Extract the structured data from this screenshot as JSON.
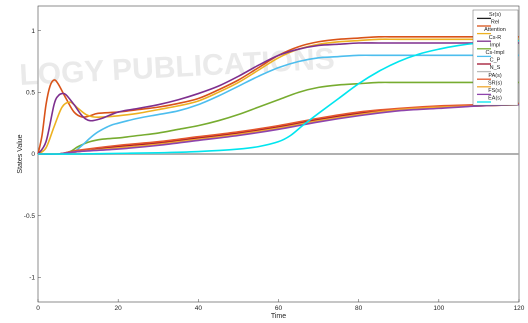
{
  "chart_data": {
    "type": "line",
    "title": "",
    "xlabel": "Time",
    "ylabel": "States Value",
    "xlim": [
      0,
      120
    ],
    "ylim": [
      -1.2,
      1.2
    ],
    "xticks": [
      "0",
      "20",
      "40",
      "60",
      "80",
      "100",
      "120"
    ],
    "yticks": [
      "-1",
      "-0.5",
      "0",
      "0.5",
      "1"
    ],
    "grid": false,
    "legend_position": "top-right",
    "series": [
      {
        "name": "Sr(s)",
        "color": "#1f1f1f",
        "x": [
          0,
          120
        ],
        "y": [
          0,
          0
        ]
      },
      {
        "name": "Rel",
        "color": "#d95319",
        "x": [
          0,
          1,
          2,
          3,
          4,
          5,
          7,
          9,
          11,
          13,
          15,
          20,
          25,
          30,
          35,
          40,
          45,
          50,
          55,
          60,
          65,
          70,
          75,
          80,
          85,
          90,
          100,
          110,
          120
        ],
        "y": [
          0,
          0.15,
          0.4,
          0.55,
          0.6,
          0.57,
          0.45,
          0.34,
          0.3,
          0.31,
          0.33,
          0.34,
          0.36,
          0.38,
          0.41,
          0.45,
          0.52,
          0.6,
          0.7,
          0.8,
          0.87,
          0.91,
          0.93,
          0.94,
          0.95,
          0.95,
          0.95,
          0.95,
          0.95
        ]
      },
      {
        "name": "Attention",
        "color": "#edb120",
        "x": [
          0,
          2,
          4,
          6,
          8,
          10,
          12,
          14,
          16,
          20,
          25,
          30,
          35,
          40,
          45,
          50,
          55,
          60,
          65,
          70,
          75,
          80,
          85,
          90,
          100,
          110,
          120
        ],
        "y": [
          0,
          0.05,
          0.22,
          0.38,
          0.42,
          0.37,
          0.32,
          0.3,
          0.3,
          0.31,
          0.33,
          0.36,
          0.39,
          0.43,
          0.5,
          0.58,
          0.68,
          0.78,
          0.85,
          0.89,
          0.91,
          0.92,
          0.93,
          0.93,
          0.93,
          0.93,
          0.93
        ]
      },
      {
        "name": "Cs-R",
        "color": "#7e2f8e",
        "x": [
          0,
          2,
          4,
          5,
          6,
          7,
          9,
          11,
          13,
          16,
          20,
          25,
          30,
          35,
          40,
          45,
          50,
          55,
          60,
          65,
          70,
          75,
          80,
          85,
          90,
          100,
          110,
          120
        ],
        "y": [
          0,
          0.1,
          0.4,
          0.47,
          0.49,
          0.48,
          0.4,
          0.31,
          0.27,
          0.29,
          0.34,
          0.37,
          0.4,
          0.44,
          0.49,
          0.55,
          0.63,
          0.72,
          0.8,
          0.85,
          0.88,
          0.89,
          0.9,
          0.9,
          0.9,
          0.9,
          0.9,
          0.9
        ]
      },
      {
        "name": "Impl",
        "color": "#77ac30",
        "x": [
          0,
          5,
          8,
          10,
          13,
          16,
          20,
          25,
          30,
          35,
          40,
          45,
          50,
          55,
          60,
          65,
          70,
          75,
          80,
          85,
          90,
          100,
          110,
          120
        ],
        "y": [
          0,
          0,
          0.02,
          0.06,
          0.1,
          0.12,
          0.13,
          0.15,
          0.17,
          0.2,
          0.23,
          0.27,
          0.32,
          0.38,
          0.44,
          0.5,
          0.54,
          0.56,
          0.57,
          0.58,
          0.58,
          0.58,
          0.58,
          0.58
        ]
      },
      {
        "name": "Cs-Impl",
        "color": "#4dbeee",
        "x": [
          0,
          6,
          9,
          11,
          13,
          15,
          18,
          20,
          25,
          30,
          35,
          40,
          45,
          50,
          55,
          60,
          65,
          70,
          75,
          80,
          85,
          90,
          100,
          110,
          120
        ],
        "y": [
          0,
          0,
          0.02,
          0.07,
          0.13,
          0.18,
          0.23,
          0.25,
          0.29,
          0.32,
          0.35,
          0.4,
          0.47,
          0.55,
          0.63,
          0.7,
          0.75,
          0.78,
          0.79,
          0.8,
          0.8,
          0.8,
          0.8,
          0.8,
          0.8
        ]
      },
      {
        "name": "C_P",
        "color": "#a2142f",
        "x": [
          0,
          5,
          10,
          20,
          30,
          40,
          50,
          60,
          70,
          80,
          90,
          100,
          110,
          120
        ],
        "y": [
          0,
          0,
          0.02,
          0.06,
          0.09,
          0.13,
          0.17,
          0.22,
          0.28,
          0.33,
          0.36,
          0.38,
          0.39,
          0.4
        ]
      },
      {
        "name": "N_S",
        "color": "#bbbbbb",
        "x": [
          0,
          120
        ],
        "y": [
          0,
          0
        ]
      },
      {
        "name": "PA(s)",
        "color": "#e4572e",
        "x": [
          0,
          5,
          10,
          20,
          30,
          40,
          50,
          60,
          70,
          80,
          90,
          100,
          110,
          120
        ],
        "y": [
          0,
          0,
          0.03,
          0.07,
          0.1,
          0.14,
          0.18,
          0.23,
          0.29,
          0.34,
          0.37,
          0.39,
          0.4,
          0.41
        ]
      },
      {
        "name": "SR(s)",
        "color": "#f0a830",
        "x": [
          0,
          5,
          10,
          20,
          30,
          40,
          50,
          60,
          70,
          80,
          90,
          100,
          110,
          120
        ],
        "y": [
          0,
          0,
          0.02,
          0.05,
          0.08,
          0.12,
          0.16,
          0.21,
          0.27,
          0.32,
          0.36,
          0.38,
          0.39,
          0.4
        ]
      },
      {
        "name": "FS(s)",
        "color": "#8e44ad",
        "x": [
          0,
          5,
          10,
          20,
          30,
          40,
          50,
          60,
          70,
          80,
          90,
          100,
          110,
          120
        ],
        "y": [
          0,
          0,
          0.02,
          0.04,
          0.07,
          0.11,
          0.15,
          0.2,
          0.26,
          0.31,
          0.35,
          0.37,
          0.39,
          0.4
        ]
      },
      {
        "name": "EA(s)",
        "color": "#00e5ee",
        "x": [
          0,
          10,
          20,
          30,
          40,
          50,
          55,
          60,
          63,
          66,
          70,
          75,
          80,
          85,
          90,
          95,
          100,
          105,
          110,
          115,
          120
        ],
        "y": [
          0,
          0,
          0.005,
          0.01,
          0.02,
          0.04,
          0.06,
          0.1,
          0.15,
          0.23,
          0.33,
          0.45,
          0.57,
          0.67,
          0.75,
          0.81,
          0.85,
          0.88,
          0.9,
          0.91,
          0.92
        ]
      }
    ]
  }
}
